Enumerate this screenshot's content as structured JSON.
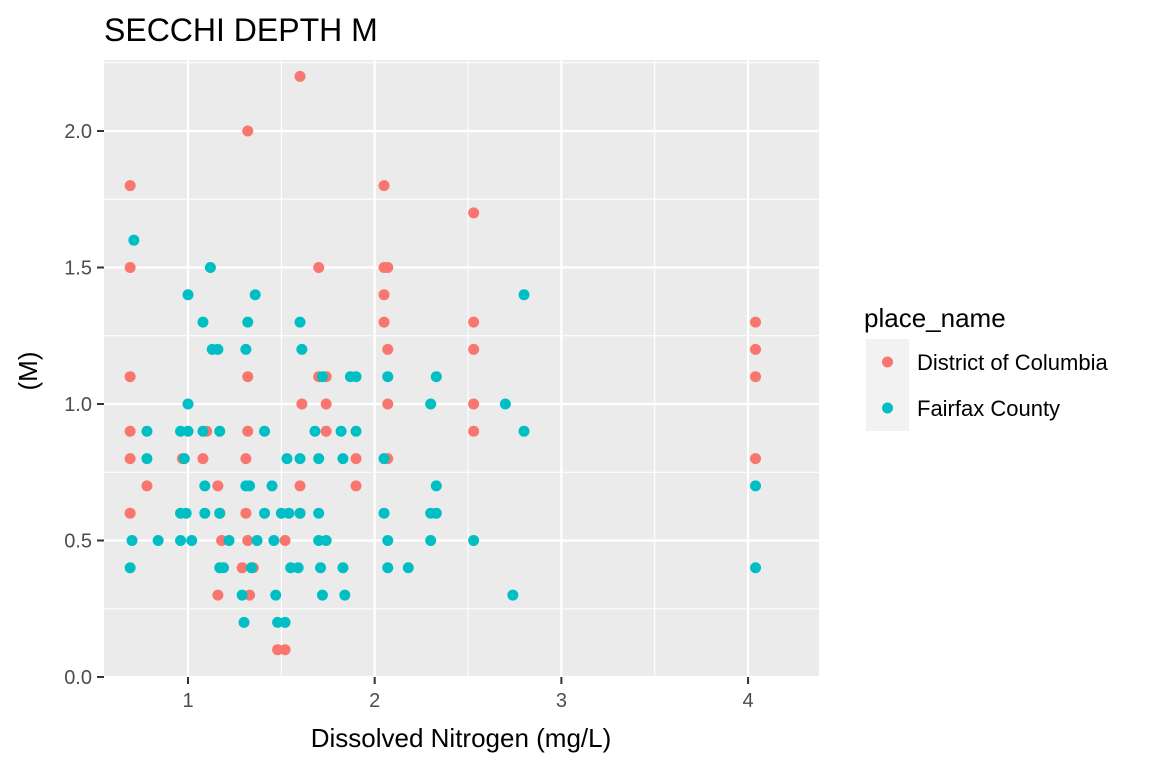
{
  "chart_data": {
    "type": "scatter",
    "title": "SECCHI DEPTH M",
    "xlabel": "Dissolved Nitrogen (mg/L)",
    "ylabel": "(M)",
    "xlim": [
      0.55,
      4.38
    ],
    "ylim": [
      0,
      2.26
    ],
    "x_ticks": [
      1,
      2,
      3,
      4
    ],
    "x_tick_labels": [
      "1",
      "2",
      "3",
      "4"
    ],
    "y_ticks": [
      0,
      0.5,
      1,
      1.5,
      2
    ],
    "y_tick_labels": [
      "0.0",
      "0.5",
      "1.0",
      "1.5",
      "2.0"
    ],
    "grid": true,
    "legend": {
      "title": "place_name",
      "placement": "right"
    },
    "series": [
      {
        "name": "District of Columbia",
        "color": "#F8766D",
        "points": [
          [
            0.69,
            1.8
          ],
          [
            0.69,
            1.5
          ],
          [
            0.69,
            1.1
          ],
          [
            0.69,
            0.9
          ],
          [
            0.69,
            0.8
          ],
          [
            0.69,
            0.6
          ],
          [
            0.78,
            0.7
          ],
          [
            0.97,
            0.8
          ],
          [
            1.08,
            0.8
          ],
          [
            1.1,
            0.9
          ],
          [
            1.16,
            0.7
          ],
          [
            1.16,
            0.3
          ],
          [
            1.17,
            0.6
          ],
          [
            1.18,
            0.5
          ],
          [
            1.29,
            0.4
          ],
          [
            1.31,
            0.6
          ],
          [
            1.31,
            0.8
          ],
          [
            1.32,
            2.0
          ],
          [
            1.32,
            1.1
          ],
          [
            1.32,
            0.9
          ],
          [
            1.32,
            0.5
          ],
          [
            1.33,
            0.3
          ],
          [
            1.35,
            0.4
          ],
          [
            1.48,
            0.1
          ],
          [
            1.52,
            0.1
          ],
          [
            1.52,
            0.5
          ],
          [
            1.6,
            2.2
          ],
          [
            1.6,
            0.7
          ],
          [
            1.6,
            0.6
          ],
          [
            1.61,
            1.0
          ],
          [
            1.7,
            1.5
          ],
          [
            1.7,
            1.1
          ],
          [
            1.74,
            1.1
          ],
          [
            1.74,
            1.0
          ],
          [
            1.74,
            0.9
          ],
          [
            1.9,
            0.8
          ],
          [
            1.9,
            0.7
          ],
          [
            2.05,
            1.8
          ],
          [
            2.05,
            1.5
          ],
          [
            2.05,
            1.4
          ],
          [
            2.05,
            1.3
          ],
          [
            2.07,
            1.5
          ],
          [
            2.07,
            1.2
          ],
          [
            2.07,
            1.0
          ],
          [
            2.07,
            0.8
          ],
          [
            2.53,
            1.7
          ],
          [
            2.53,
            1.3
          ],
          [
            2.53,
            1.2
          ],
          [
            2.53,
            1.0
          ],
          [
            2.53,
            0.9
          ],
          [
            4.04,
            1.3
          ],
          [
            4.04,
            1.2
          ],
          [
            4.04,
            1.1
          ],
          [
            4.04,
            0.8
          ]
        ]
      },
      {
        "name": "Fairfax County",
        "color": "#00BFC4",
        "points": [
          [
            0.71,
            1.6
          ],
          [
            0.69,
            0.4
          ],
          [
            0.7,
            0.5
          ],
          [
            0.78,
            0.9
          ],
          [
            0.78,
            0.8
          ],
          [
            0.84,
            0.5
          ],
          [
            0.96,
            0.9
          ],
          [
            0.96,
            0.6
          ],
          [
            0.96,
            0.5
          ],
          [
            0.98,
            0.8
          ],
          [
            0.99,
            0.6
          ],
          [
            1.0,
            1.4
          ],
          [
            1.0,
            1.0
          ],
          [
            1.0,
            0.9
          ],
          [
            1.02,
            0.5
          ],
          [
            1.08,
            1.3
          ],
          [
            1.08,
            0.9
          ],
          [
            1.09,
            0.7
          ],
          [
            1.09,
            0.6
          ],
          [
            1.12,
            1.5
          ],
          [
            1.13,
            1.2
          ],
          [
            1.16,
            1.2
          ],
          [
            1.17,
            0.9
          ],
          [
            1.17,
            0.6
          ],
          [
            1.17,
            0.4
          ],
          [
            1.19,
            0.4
          ],
          [
            1.22,
            0.5
          ],
          [
            1.29,
            0.3
          ],
          [
            1.3,
            0.2
          ],
          [
            1.31,
            1.2
          ],
          [
            1.32,
            1.3
          ],
          [
            1.31,
            0.7
          ],
          [
            1.33,
            0.7
          ],
          [
            1.34,
            0.4
          ],
          [
            1.36,
            1.4
          ],
          [
            1.37,
            0.5
          ],
          [
            1.41,
            0.9
          ],
          [
            1.41,
            0.6
          ],
          [
            1.45,
            0.7
          ],
          [
            1.46,
            0.5
          ],
          [
            1.47,
            0.3
          ],
          [
            1.48,
            0.2
          ],
          [
            1.5,
            0.6
          ],
          [
            1.52,
            0.2
          ],
          [
            1.53,
            0.8
          ],
          [
            1.54,
            0.6
          ],
          [
            1.55,
            0.4
          ],
          [
            1.6,
            1.3
          ],
          [
            1.61,
            1.2
          ],
          [
            1.6,
            0.8
          ],
          [
            1.6,
            0.6
          ],
          [
            1.59,
            0.4
          ],
          [
            1.68,
            0.9
          ],
          [
            1.7,
            0.8
          ],
          [
            1.7,
            0.6
          ],
          [
            1.7,
            0.5
          ],
          [
            1.71,
            0.4
          ],
          [
            1.72,
            1.1
          ],
          [
            1.72,
            0.3
          ],
          [
            1.74,
            0.5
          ],
          [
            1.82,
            0.9
          ],
          [
            1.83,
            0.8
          ],
          [
            1.83,
            0.4
          ],
          [
            1.84,
            0.3
          ],
          [
            1.87,
            1.1
          ],
          [
            1.9,
            1.1
          ],
          [
            1.9,
            0.9
          ],
          [
            2.05,
            0.8
          ],
          [
            2.05,
            0.6
          ],
          [
            2.07,
            1.1
          ],
          [
            2.07,
            0.5
          ],
          [
            2.07,
            0.4
          ],
          [
            2.18,
            0.4
          ],
          [
            2.3,
            1.0
          ],
          [
            2.3,
            0.6
          ],
          [
            2.3,
            0.5
          ],
          [
            2.33,
            1.1
          ],
          [
            2.33,
            0.7
          ],
          [
            2.33,
            0.6
          ],
          [
            2.53,
            0.5
          ],
          [
            2.7,
            1.0
          ],
          [
            2.74,
            0.3
          ],
          [
            2.8,
            1.4
          ],
          [
            2.8,
            0.9
          ],
          [
            4.04,
            0.7
          ],
          [
            4.04,
            0.4
          ]
        ]
      }
    ]
  }
}
